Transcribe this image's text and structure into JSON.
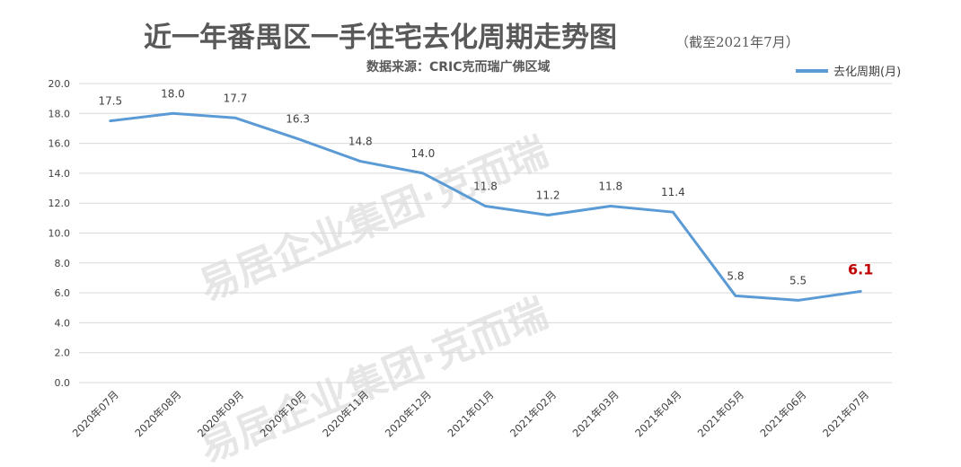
{
  "header": {
    "title": "近一年番禺区一手住宅去化周期走势图",
    "title_note": "（截至2021年7月）",
    "subtitle": "数据来源：CRIC克而瑞广佛区域"
  },
  "watermark": {
    "text1": "易居企业集团·克而瑞",
    "text2": "易居企业集团·克而瑞"
  },
  "chart_data": {
    "type": "line",
    "categories": [
      "2020年07月",
      "2020年08月",
      "2020年09月",
      "2020年10月",
      "2020年11月",
      "2020年12月",
      "2021年01月",
      "2021年02月",
      "2021年03月",
      "2021年04月",
      "2021年05月",
      "2021年06月",
      "2021年07月"
    ],
    "series": [
      {
        "name": "去化周期(月)",
        "values": [
          17.5,
          18.0,
          17.7,
          16.3,
          14.8,
          14.0,
          11.8,
          11.2,
          11.8,
          11.4,
          5.8,
          5.5,
          6.1
        ],
        "labels": [
          "17.5",
          "18.0",
          "17.7",
          "16.3",
          "14.8",
          "14.0",
          "11.8",
          "11.2",
          "11.8",
          "11.4",
          "5.8",
          "5.5",
          "6.1"
        ],
        "color": "#5b9bd5"
      }
    ],
    "highlight_index": 12,
    "highlight_color": "#c00000",
    "ylim": [
      0,
      20
    ],
    "yticks": [
      "0.0",
      "2.0",
      "4.0",
      "6.0",
      "8.0",
      "10.0",
      "12.0",
      "14.0",
      "16.0",
      "18.0",
      "20.0"
    ],
    "grid": true,
    "gridline_color": "#d9d9d9",
    "legend_position": "top-right"
  }
}
